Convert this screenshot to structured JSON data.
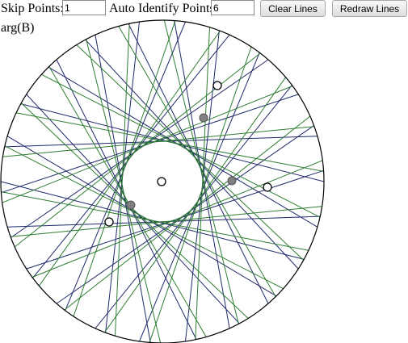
{
  "controls": {
    "skip_label": "Skip Points:",
    "skip_value": "1",
    "auto_label": "Auto Identify Points:",
    "auto_value": "6",
    "clear_button": "Clear Lines",
    "redraw_button": "Redraw Lines"
  },
  "canvas": {
    "label": "arg(B)",
    "colors": {
      "line_a": "#1f2a6b",
      "line_b": "#2e7d32",
      "circle": "#000000",
      "filled_dot": "#808080"
    },
    "open_points": 4,
    "filled_points": 3
  }
}
